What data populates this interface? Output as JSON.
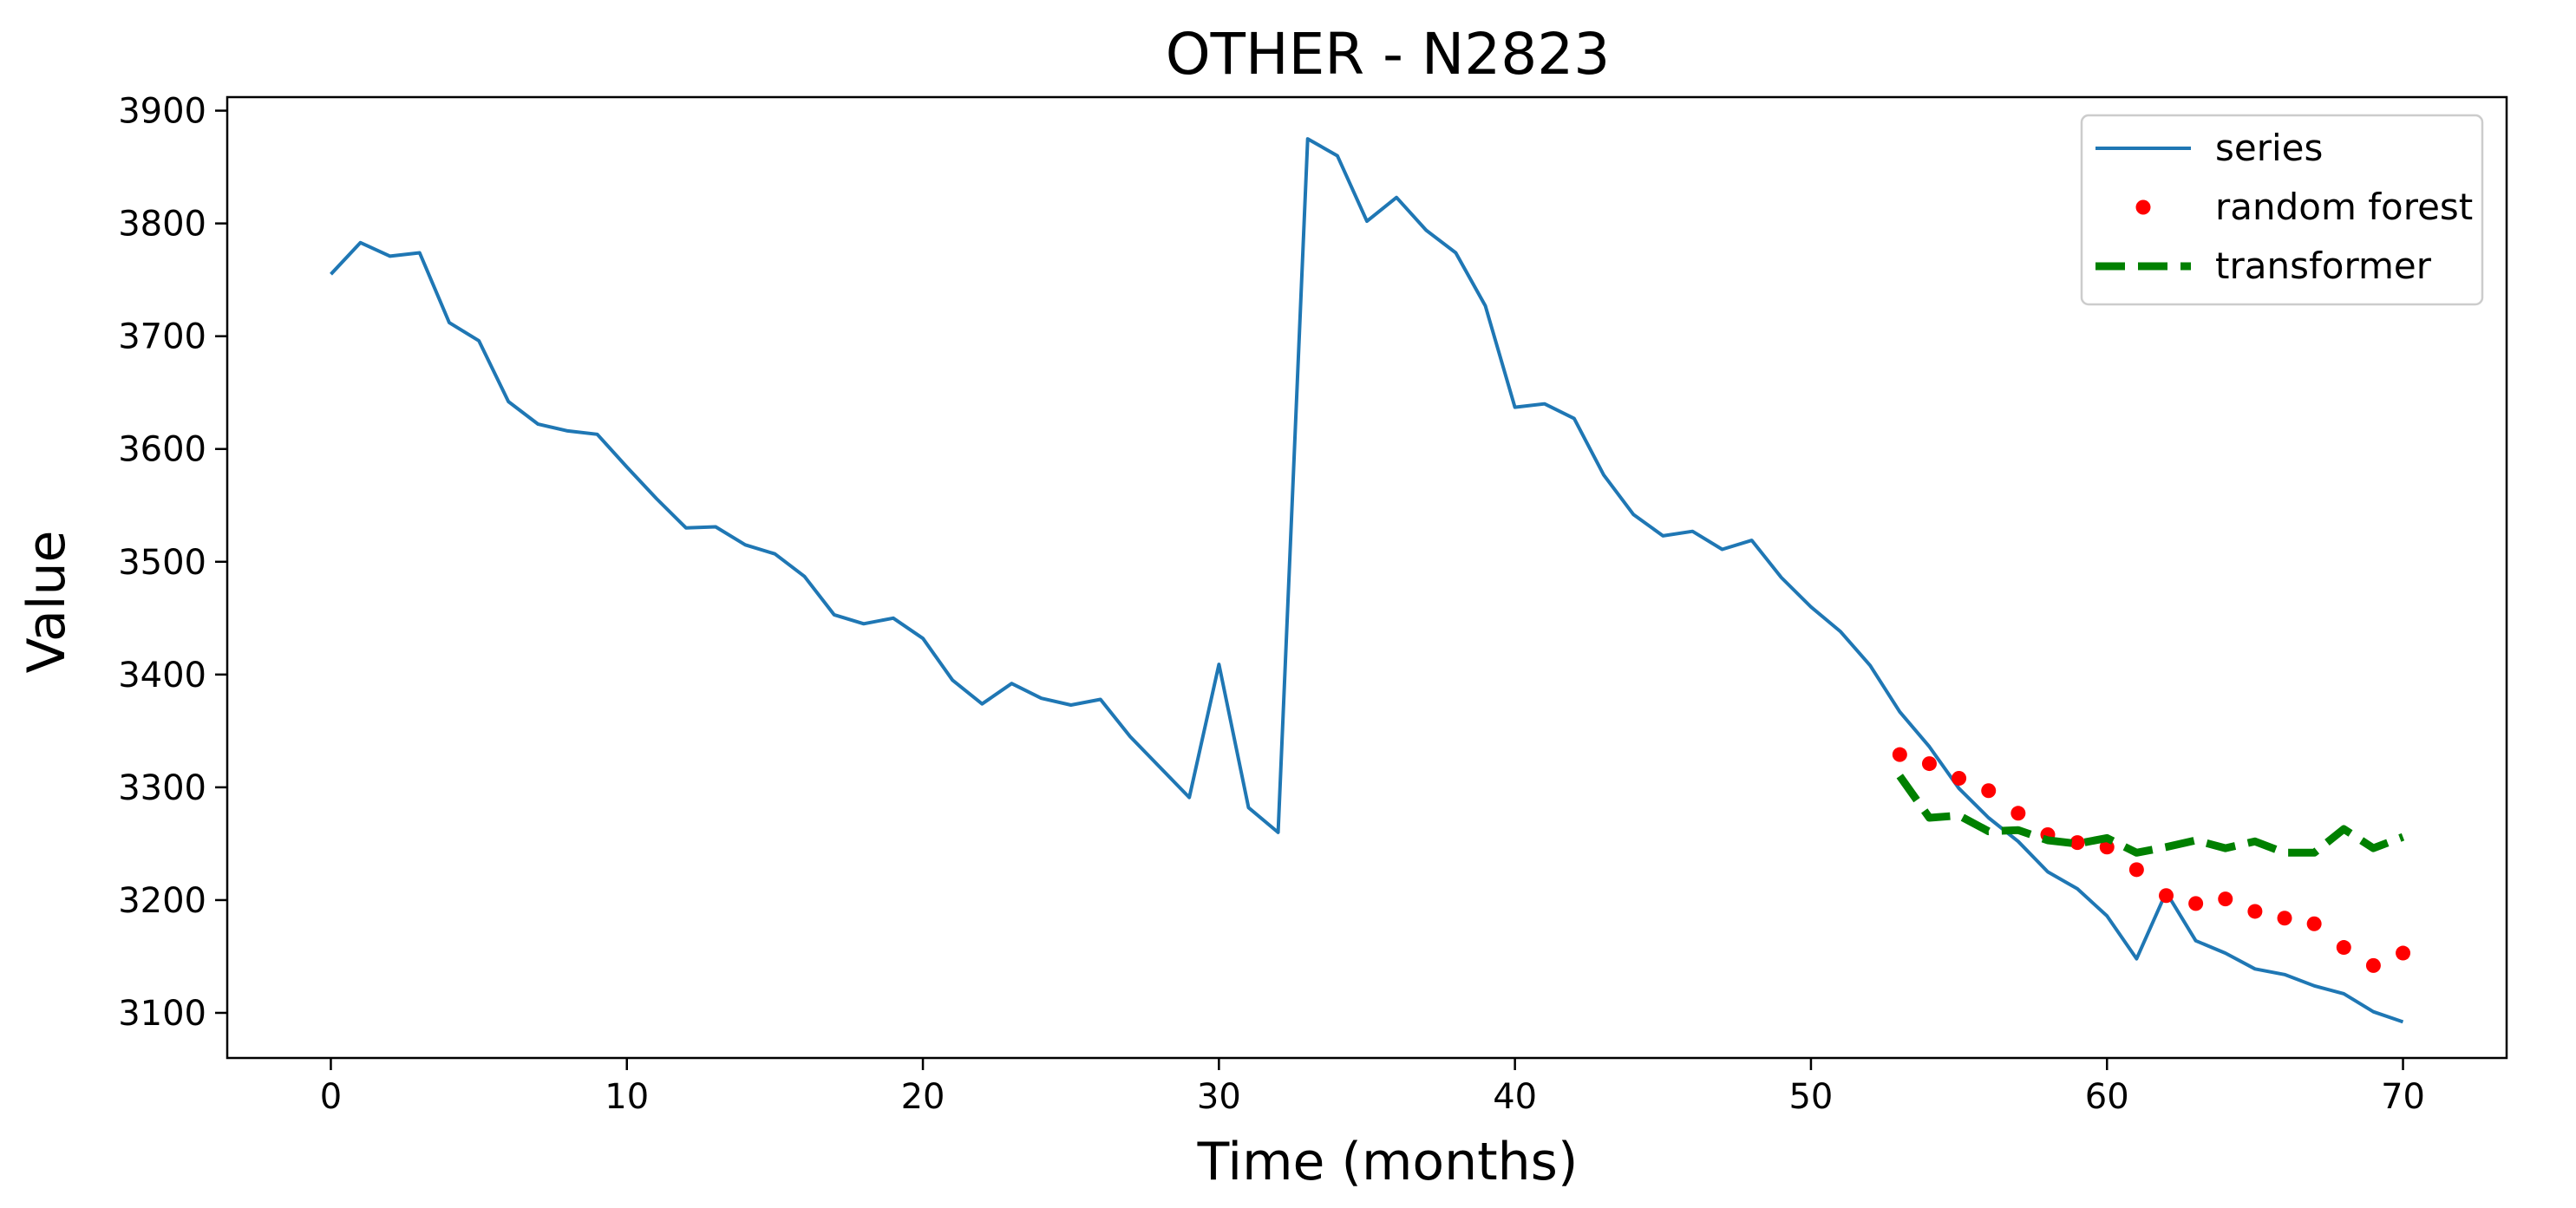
{
  "chart_data": {
    "type": "line",
    "title": "OTHER - N2823",
    "xlabel": "Time (months)",
    "ylabel": "Value",
    "xlim": [
      -3.5,
      73.5
    ],
    "ylim": [
      3060,
      3912
    ],
    "xticks": [
      0,
      10,
      20,
      30,
      40,
      50,
      60,
      70
    ],
    "yticks": [
      3100,
      3200,
      3300,
      3400,
      3500,
      3600,
      3700,
      3800,
      3900
    ],
    "grid": false,
    "legend_position": "top-right",
    "series": [
      {
        "name": "series",
        "style": "solid-line",
        "color": "#1f77b4",
        "x": [
          0,
          1,
          2,
          3,
          4,
          5,
          6,
          7,
          8,
          9,
          10,
          11,
          12,
          13,
          14,
          15,
          16,
          17,
          18,
          19,
          20,
          21,
          22,
          23,
          24,
          25,
          26,
          27,
          28,
          29,
          30,
          31,
          32,
          33,
          34,
          35,
          36,
          37,
          38,
          39,
          40,
          41,
          42,
          43,
          44,
          45,
          46,
          47,
          48,
          49,
          50,
          51,
          52,
          53,
          54,
          55,
          56,
          57,
          58,
          59,
          60,
          61,
          62,
          63,
          64,
          65,
          66,
          67,
          68,
          69,
          70
        ],
        "values": [
          3755,
          3783,
          3771,
          3774,
          3712,
          3696,
          3642,
          3622,
          3616,
          3613,
          3584,
          3556,
          3530,
          3531,
          3515,
          3507,
          3487,
          3453,
          3445,
          3450,
          3432,
          3395,
          3374,
          3392,
          3379,
          3373,
          3378,
          3345,
          3318,
          3291,
          3409,
          3282,
          3260,
          3875,
          3860,
          3802,
          3823,
          3794,
          3774,
          3727,
          3637,
          3640,
          3627,
          3577,
          3542,
          3523,
          3527,
          3511,
          3519,
          3486,
          3460,
          3438,
          3408,
          3367,
          3336,
          3299,
          3273,
          3252,
          3225,
          3210,
          3186,
          3148,
          3207,
          3164,
          3153,
          3139,
          3134,
          3124,
          3117,
          3101,
          3092
        ]
      },
      {
        "name": "random forest",
        "style": "dotted",
        "color": "#ff0000",
        "x": [
          53,
          54,
          55,
          56,
          57,
          58,
          59,
          60,
          61,
          62,
          63,
          64,
          65,
          66,
          67,
          68,
          69,
          70
        ],
        "values": [
          3329,
          3321,
          3308,
          3297,
          3277,
          3258,
          3251,
          3247,
          3227,
          3204,
          3197,
          3201,
          3190,
          3184,
          3179,
          3158,
          3142,
          3153
        ]
      },
      {
        "name": "transformer",
        "style": "dashed",
        "color": "#008000",
        "x": [
          53,
          54,
          55,
          56,
          57,
          58,
          59,
          60,
          61,
          62,
          63,
          64,
          65,
          66,
          67,
          68,
          69,
          70
        ],
        "values": [
          3310,
          3273,
          3275,
          3261,
          3262,
          3253,
          3250,
          3255,
          3242,
          3247,
          3253,
          3246,
          3252,
          3242,
          3242,
          3263,
          3246,
          3256
        ]
      }
    ]
  }
}
